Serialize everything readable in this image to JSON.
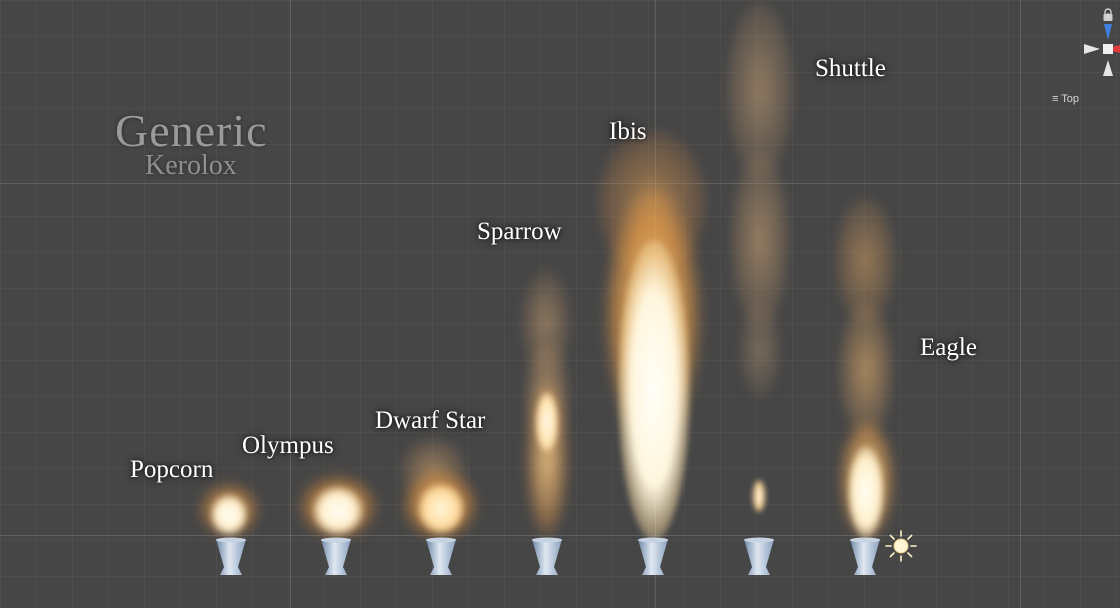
{
  "scene": {
    "title": "Generic",
    "subtitle": "Kerolox"
  },
  "engines": [
    {
      "name": "Popcorn"
    },
    {
      "name": "Olympus"
    },
    {
      "name": "Dwarf Star"
    },
    {
      "name": "Sparrow"
    },
    {
      "name": "Ibis"
    },
    {
      "name": "Shuttle"
    },
    {
      "name": "Eagle"
    }
  ],
  "gizmo": {
    "view_label": "Top",
    "axis_z": "z",
    "axis_x": "x",
    "colors": {
      "z": "#3f7fe0",
      "x": "#e03b3b",
      "neutral": "#e6e6e6"
    }
  },
  "icons": [
    "lock-icon",
    "directional-light-icon",
    "view-axis-gizmo"
  ],
  "colors": {
    "background": "#464646",
    "flame_core": "#fff8e6",
    "flame_glow": "#f7b65a",
    "smoke": "#d2aa7c"
  }
}
